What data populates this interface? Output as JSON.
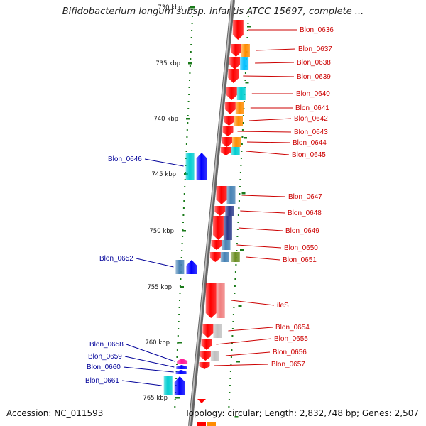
{
  "title": "Bifidobacterium longum subsp. infantis ATCC 15697, complete ...",
  "footer": {
    "accession": "Accession: NC_011593",
    "stats": "Topology: circular; Length: 2,832,748 bp; Genes: 2,507"
  },
  "colors": {
    "forward_label": "#cc0000",
    "reverse_label": "#000099",
    "axis": "#888888",
    "tick": "#1a7a1a"
  },
  "ticks": [
    "730 kbp",
    "735 kbp",
    "740 kbp",
    "745 kbp",
    "750 kbp",
    "755 kbp",
    "760 kbp",
    "765 kbp"
  ],
  "genes": [
    {
      "label": "Blon_0636",
      "strand": "+",
      "colors": [
        "#ff0000"
      ]
    },
    {
      "label": "Blon_0637",
      "strand": "+",
      "colors": [
        "#ff0000",
        "#ff8c00"
      ]
    },
    {
      "label": "Blon_0638",
      "strand": "+",
      "colors": [
        "#ff0000",
        "#00bfff"
      ]
    },
    {
      "label": "Blon_0639",
      "strand": "+",
      "colors": [
        "#ff0000"
      ]
    },
    {
      "label": "Blon_0640",
      "strand": "+",
      "colors": [
        "#ff0000",
        "#00ced1"
      ]
    },
    {
      "label": "Blon_0641",
      "strand": "+",
      "colors": [
        "#ff0000",
        "#ff8c00"
      ]
    },
    {
      "label": "Blon_0642",
      "strand": "+",
      "colors": [
        "#ff0000",
        "#ff8c00"
      ]
    },
    {
      "label": "Blon_0643",
      "strand": "+",
      "colors": [
        "#ff0000"
      ]
    },
    {
      "label": "Blon_0644",
      "strand": "+",
      "colors": [
        "#ff0000",
        "#ff8c00"
      ]
    },
    {
      "label": "Blon_0645",
      "strand": "+",
      "colors": [
        "#ff0000",
        "#00ced1"
      ]
    },
    {
      "label": "Blon_0646",
      "strand": "-",
      "colors": [
        "#00ced1",
        "#0000ff"
      ]
    },
    {
      "label": "Blon_0647",
      "strand": "+",
      "colors": [
        "#ff0000",
        "#4682b4"
      ]
    },
    {
      "label": "Blon_0648",
      "strand": "+",
      "colors": [
        "#ff0000",
        "#2b3a8a"
      ]
    },
    {
      "label": "Blon_0649",
      "strand": "+",
      "colors": [
        "#ff0000",
        "#2b3a8a"
      ]
    },
    {
      "label": "Blon_0650",
      "strand": "+",
      "colors": [
        "#ff0000",
        "#4682b4"
      ]
    },
    {
      "label": "Blon_0651",
      "strand": "+",
      "colors": [
        "#ff0000",
        "#4682b4",
        "#6b8e23"
      ]
    },
    {
      "label": "Blon_0652",
      "strand": "-",
      "colors": [
        "#4682b4",
        "#0000ff"
      ]
    },
    {
      "label": "ileS",
      "strand": "+",
      "colors": [
        "#ff0000",
        "#f08080"
      ]
    },
    {
      "label": "Blon_0654",
      "strand": "+",
      "colors": [
        "#ff0000",
        "#c0c0c0"
      ]
    },
    {
      "label": "Blon_0655",
      "strand": "+",
      "colors": [
        "#ff0000"
      ]
    },
    {
      "label": "Blon_0656",
      "strand": "+",
      "colors": [
        "#ff0000",
        "#c0c0c0"
      ]
    },
    {
      "label": "Blon_0657",
      "strand": "+",
      "colors": [
        "#ff0000"
      ]
    },
    {
      "label": "Blon_0658",
      "strand": "-",
      "colors": [
        "#ff1493"
      ]
    },
    {
      "label": "Blon_0659",
      "strand": "-",
      "colors": [
        "#0000ff"
      ]
    },
    {
      "label": "Blon_0660",
      "strand": "-",
      "colors": [
        "#0000ff"
      ]
    },
    {
      "label": "Blon_0661",
      "strand": "-",
      "colors": [
        "#00ced1",
        "#0000ff"
      ]
    }
  ]
}
